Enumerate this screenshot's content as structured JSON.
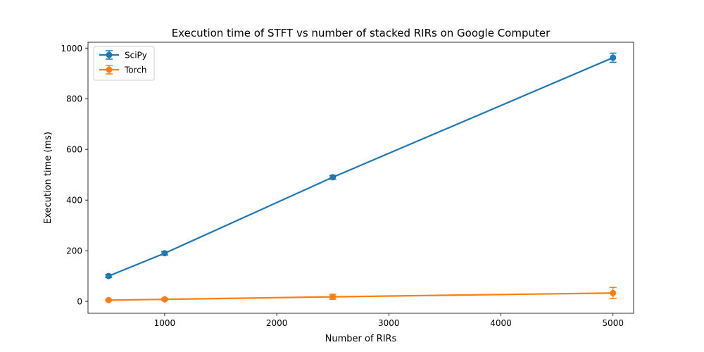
{
  "chart_data": {
    "type": "line",
    "title": "Execution time of STFT vs number of stacked RIRs on Google Computer",
    "xlabel": "Number of RIRs",
    "ylabel": "Execution time (ms)",
    "xlim": [
      316,
      5184
    ],
    "ylim": [
      -47,
      1023
    ],
    "xticks": [
      1000,
      2000,
      3000,
      4000,
      5000
    ],
    "yticks": [
      0,
      200,
      400,
      600,
      800,
      1000
    ],
    "grid": false,
    "legend_position": "top-left",
    "error_bars": true,
    "x": [
      500,
      1000,
      2500,
      5000
    ],
    "series": [
      {
        "name": "SciPy",
        "color": "#1f77b4",
        "values": [
          100,
          190,
          490,
          962
        ],
        "errors": [
          6,
          7,
          8,
          18
        ]
      },
      {
        "name": "Torch",
        "color": "#ff7f0e",
        "values": [
          5,
          8,
          18,
          33
        ],
        "errors": [
          3,
          4,
          10,
          22
        ]
      }
    ]
  }
}
